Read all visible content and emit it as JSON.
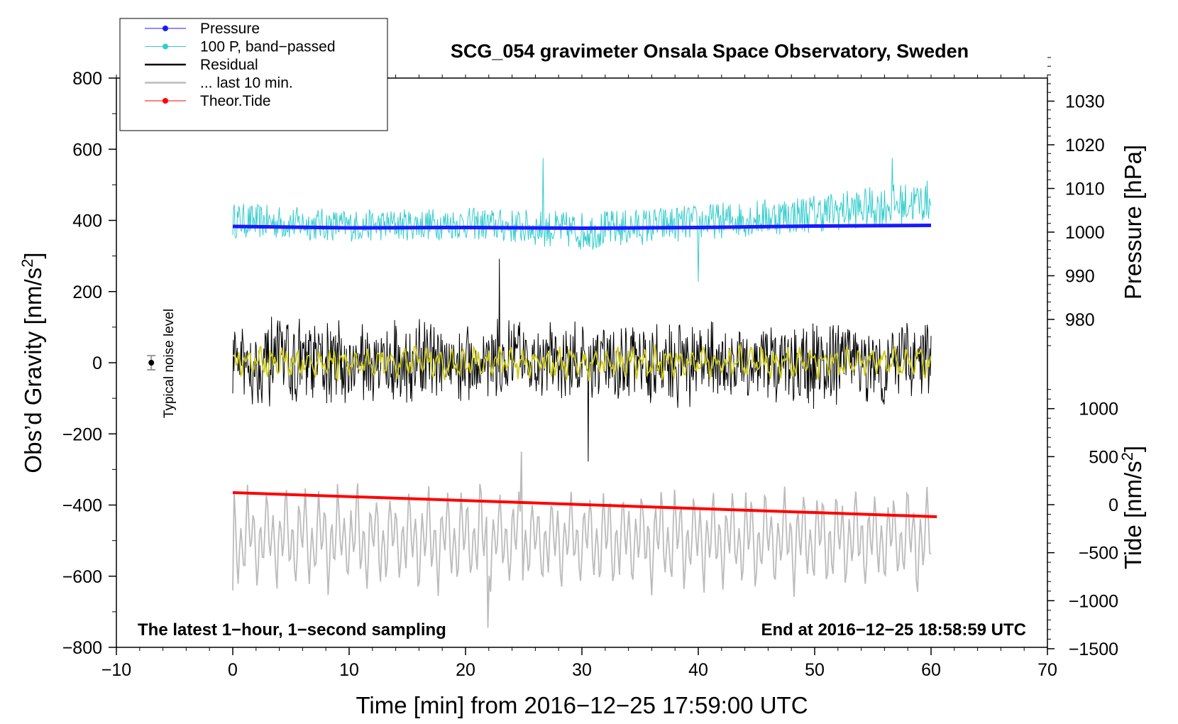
{
  "chart_data": {
    "type": "line",
    "title": "SCG_054 gravimeter Onsala Space Observatory, Sweden",
    "xlabel": "Time [min] from 2016−12−25 17:59:00 UTC",
    "ylabel_left": "Obs’d Gravity [nm/s²]",
    "ylabel_right_top": "Pressure [hPa]",
    "ylabel_right_bottom": "Tide [nm/s²]",
    "xlim": [
      -10,
      70
    ],
    "ylim_left": [
      -800,
      800
    ],
    "x_ticks": [
      {
        "v": -10,
        "t": "−10"
      },
      {
        "v": 0,
        "t": "0"
      },
      {
        "v": 10,
        "t": "10"
      },
      {
        "v": 20,
        "t": "20"
      },
      {
        "v": 30,
        "t": "30"
      },
      {
        "v": 40,
        "t": "40"
      },
      {
        "v": 50,
        "t": "50"
      },
      {
        "v": 60,
        "t": "60"
      },
      {
        "v": 70,
        "t": "70"
      }
    ],
    "y_left_ticks": [
      {
        "v": 800,
        "t": "800"
      },
      {
        "v": 600,
        "t": "600"
      },
      {
        "v": 400,
        "t": "400"
      },
      {
        "v": 200,
        "t": "200"
      },
      {
        "v": 0,
        "t": "0"
      },
      {
        "v": -200,
        "t": "−200"
      },
      {
        "v": -400,
        "t": "−400"
      },
      {
        "v": -600,
        "t": "−600"
      },
      {
        "v": -800,
        "t": "−800"
      }
    ],
    "pressure_ticks": [
      {
        "v": 1030,
        "t": "1030"
      },
      {
        "v": 1020,
        "t": "1020"
      },
      {
        "v": 1010,
        "t": "1010"
      },
      {
        "v": 1000,
        "t": "1000"
      },
      {
        "v": 990,
        "t": "990"
      },
      {
        "v": 980,
        "t": "980"
      }
    ],
    "tide_ticks": [
      {
        "v": 1000,
        "t": "1000"
      },
      {
        "v": 500,
        "t": "500"
      },
      {
        "v": 0,
        "t": "0"
      },
      {
        "v": -500,
        "t": "−500"
      },
      {
        "v": -1000,
        "t": "−1000"
      },
      {
        "v": -1500,
        "t": "−1500"
      }
    ],
    "legend": [
      {
        "label": "Pressure",
        "color": "#1a1aff",
        "marker": true
      },
      {
        "label": "100 P, band−passed",
        "color": "#33cccc",
        "marker": true
      },
      {
        "label": "Residual",
        "color": "#000000",
        "marker": false
      },
      {
        "label": "... last 10 min.",
        "color": "#bbbbbb",
        "marker": false
      },
      {
        "label": "Theor.Tide",
        "color": "#ff0000",
        "marker": true
      }
    ],
    "series": [
      {
        "name": "Pressure",
        "color": "#1a1aff",
        "axis": "left",
        "x": [
          0,
          10,
          20,
          30,
          40,
          50,
          60
        ],
        "values": [
          383,
          379,
          380,
          378,
          380,
          384,
          386
        ]
      },
      {
        "name": "100 P, band-passed",
        "color": "#33cccc",
        "axis": "left",
        "x_range": [
          0,
          60
        ],
        "center": [
          400,
          385,
          392,
          370,
          395,
          420,
          455
        ],
        "amplitude": [
          50,
          45,
          45,
          55,
          50,
          55,
          60
        ],
        "min": 228,
        "max": 575
      },
      {
        "name": "Residual",
        "color": "#000000",
        "axis": "left",
        "x_range": [
          0,
          60
        ],
        "center": 0,
        "amplitude": 110,
        "min": -278,
        "max": 292
      },
      {
        "name": "Residual (smoothed)",
        "color": "#cccc1a",
        "axis": "left",
        "x_range": [
          0,
          60
        ],
        "center": 0,
        "amplitude": 40
      },
      {
        "name": "... last 10 min.",
        "color": "#bbbbbb",
        "axis": "left",
        "x_range": [
          0,
          60
        ],
        "center": -495,
        "amplitude": 110,
        "min": -745,
        "max": -250
      },
      {
        "name": "Theor.Tide",
        "color": "#ff0000",
        "axis": "left",
        "x": [
          0,
          60.5
        ],
        "values": [
          -365,
          -433
        ]
      }
    ],
    "noise_marker": {
      "x": -7,
      "y": 0,
      "err": 20
    }
  },
  "annotations": {
    "noise_label": "Typical noise level",
    "bottom_left": "The latest 1−hour, 1−second sampling",
    "bottom_right": "End at 2016−12−25 18:58:59 UTC"
  }
}
